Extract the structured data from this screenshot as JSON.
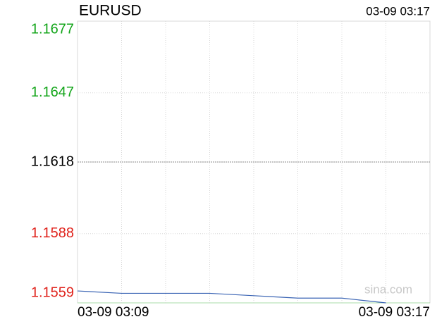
{
  "chart_data": {
    "type": "line",
    "title": "EURUSD",
    "timestamp": "03-09 03:17",
    "watermark": "sina.com",
    "categories": [
      "03-09 03:09",
      null,
      null,
      null,
      null,
      null,
      null,
      null,
      "03-09 03:17"
    ],
    "series": [
      {
        "name": "EURUSD",
        "color": "#3a64b4",
        "values": [
          1.1564,
          1.1563,
          1.1563,
          1.1563,
          1.1562,
          1.1561,
          1.1561,
          1.1559,
          null
        ]
      }
    ],
    "ylim": [
      1.1559,
      1.1677
    ],
    "yticks": [
      1.1559,
      1.1588,
      1.1618,
      1.1647,
      1.1677
    ],
    "tick_colors": [
      "#e0231c",
      "#e0231c",
      "#000000",
      "#13a51a",
      "#13a51a"
    ],
    "grid": true
  }
}
